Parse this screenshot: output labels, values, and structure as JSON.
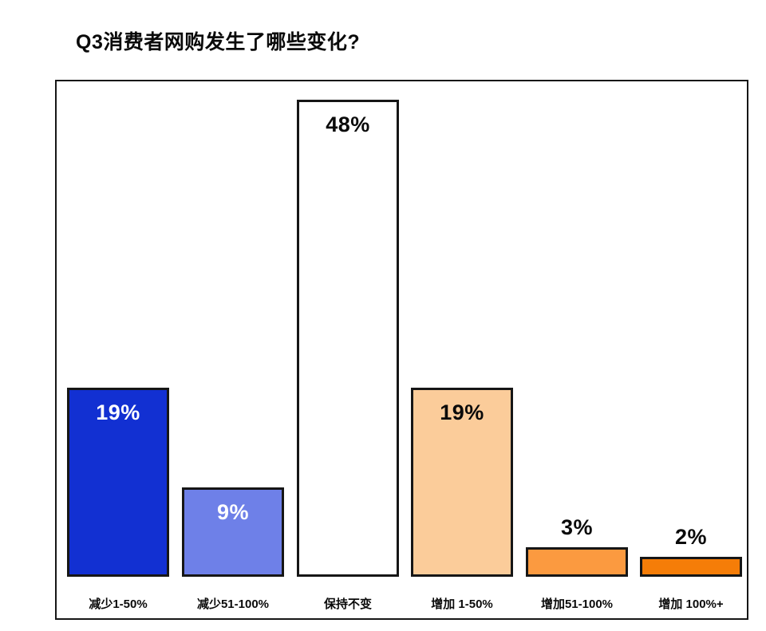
{
  "title": "Q3消费者网购发生了哪些变化?",
  "chart_data": {
    "type": "bar",
    "title": "Q3消费者网购发生了哪些变化?",
    "categories": [
      "减少1-50%",
      "减少51-100%",
      "保持不变",
      "增加 1-50%",
      "增加51-100%",
      "增加 100%+"
    ],
    "values": [
      19,
      9,
      48,
      19,
      3,
      2
    ],
    "value_labels": [
      "19%",
      "9%",
      "48%",
      "19%",
      "3%",
      "2%"
    ],
    "bar_colors": [
      "#1230d2",
      "#6e80e8",
      "#ffffff",
      "#fbcc9a",
      "#fb9a40",
      "#f57d08"
    ],
    "value_label_colors": [
      "#ffffff",
      "#ffffff",
      "#0a0a0a",
      "#0a0a0a",
      "#0a0a0a",
      "#0a0a0a"
    ],
    "value_label_placement": [
      "inside",
      "inside",
      "inside",
      "inside",
      "above",
      "above"
    ],
    "bar_border_color": "#161616",
    "frame_border_color": "#161616",
    "background_color": "#ffffff",
    "xlabel": "",
    "ylabel": "",
    "ylim": [
      0,
      50
    ],
    "grid": false,
    "legend": false
  }
}
